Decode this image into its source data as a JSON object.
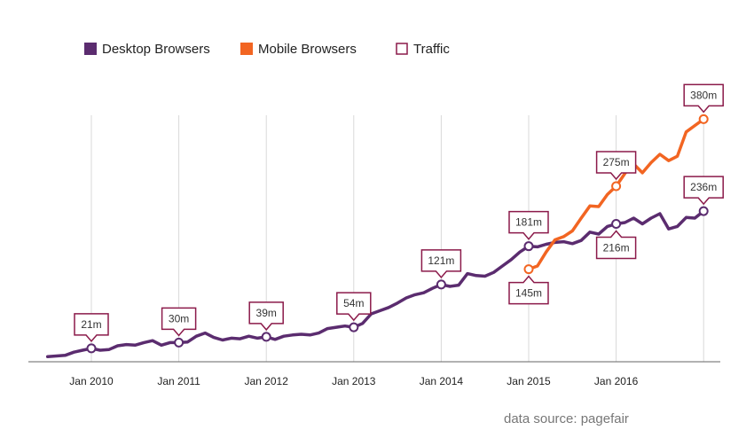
{
  "chart_data": {
    "type": "line",
    "title": "",
    "xlabel": "",
    "ylabel": "",
    "x_ticks": [
      "Jan 2010",
      "Jan 2011",
      "Jan 2012",
      "Jan 2013",
      "Jan 2014",
      "Jan 2015",
      "Jan 2016"
    ],
    "ylim": [
      0,
      410
    ],
    "grid": "vertical",
    "legend_position": "top-left",
    "legend": [
      {
        "label": "Desktop Browsers",
        "marker": "filled-square",
        "color": "#5b2c6f"
      },
      {
        "label": "Mobile Browsers",
        "marker": "filled-square",
        "color": "#f26522"
      },
      {
        "label": "Traffic",
        "marker": "hollow-square",
        "color": "#8b1a4a"
      }
    ],
    "series": [
      {
        "name": "Desktop Browsers",
        "color": "#5b2c6f",
        "points": [
          [
            2009.5,
            8
          ],
          [
            2009.6,
            9
          ],
          [
            2009.7,
            10
          ],
          [
            2009.8,
            15
          ],
          [
            2009.9,
            18
          ],
          [
            2010.0,
            21
          ],
          [
            2010.1,
            18
          ],
          [
            2010.2,
            19
          ],
          [
            2010.3,
            25
          ],
          [
            2010.4,
            27
          ],
          [
            2010.5,
            26
          ],
          [
            2010.6,
            30
          ],
          [
            2010.7,
            33
          ],
          [
            2010.8,
            26
          ],
          [
            2010.9,
            30
          ],
          [
            2011.0,
            30
          ],
          [
            2011.1,
            31
          ],
          [
            2011.2,
            40
          ],
          [
            2011.3,
            45
          ],
          [
            2011.4,
            38
          ],
          [
            2011.5,
            34
          ],
          [
            2011.6,
            37
          ],
          [
            2011.7,
            36
          ],
          [
            2011.8,
            40
          ],
          [
            2011.9,
            37
          ],
          [
            2012.0,
            39
          ],
          [
            2012.1,
            35
          ],
          [
            2012.2,
            40
          ],
          [
            2012.3,
            42
          ],
          [
            2012.4,
            43
          ],
          [
            2012.5,
            42
          ],
          [
            2012.6,
            45
          ],
          [
            2012.7,
            52
          ],
          [
            2012.8,
            54
          ],
          [
            2012.9,
            56
          ],
          [
            2013.0,
            54
          ],
          [
            2013.1,
            60
          ],
          [
            2013.2,
            75
          ],
          [
            2013.3,
            80
          ],
          [
            2013.4,
            85
          ],
          [
            2013.5,
            92
          ],
          [
            2013.6,
            100
          ],
          [
            2013.7,
            105
          ],
          [
            2013.8,
            108
          ],
          [
            2013.9,
            115
          ],
          [
            2014.0,
            121
          ],
          [
            2014.1,
            118
          ],
          [
            2014.2,
            120
          ],
          [
            2014.3,
            138
          ],
          [
            2014.4,
            135
          ],
          [
            2014.5,
            134
          ],
          [
            2014.6,
            140
          ],
          [
            2014.7,
            150
          ],
          [
            2014.8,
            160
          ],
          [
            2014.9,
            172
          ],
          [
            2015.0,
            181
          ],
          [
            2015.1,
            180
          ],
          [
            2015.2,
            184
          ],
          [
            2015.3,
            187
          ],
          [
            2015.4,
            188
          ],
          [
            2015.5,
            185
          ],
          [
            2015.6,
            190
          ],
          [
            2015.7,
            203
          ],
          [
            2015.8,
            200
          ],
          [
            2015.9,
            212
          ],
          [
            2016.0,
            216
          ],
          [
            2016.1,
            218
          ],
          [
            2016.2,
            225
          ],
          [
            2016.3,
            216
          ],
          [
            2016.4,
            225
          ],
          [
            2016.5,
            232
          ],
          [
            2016.6,
            208
          ],
          [
            2016.7,
            212
          ],
          [
            2016.8,
            226
          ],
          [
            2016.9,
            225
          ],
          [
            2017.0,
            236
          ]
        ]
      },
      {
        "name": "Mobile Browsers",
        "color": "#f26522",
        "points": [
          [
            2015.0,
            145
          ],
          [
            2015.1,
            150
          ],
          [
            2015.2,
            172
          ],
          [
            2015.3,
            191
          ],
          [
            2015.4,
            196
          ],
          [
            2015.5,
            205
          ],
          [
            2015.6,
            225
          ],
          [
            2015.7,
            244
          ],
          [
            2015.8,
            243
          ],
          [
            2015.9,
            262
          ],
          [
            2016.0,
            275
          ],
          [
            2016.1,
            295
          ],
          [
            2016.2,
            310
          ],
          [
            2016.3,
            296
          ],
          [
            2016.4,
            312
          ],
          [
            2016.5,
            325
          ],
          [
            2016.6,
            315
          ],
          [
            2016.7,
            322
          ],
          [
            2016.8,
            360
          ],
          [
            2016.9,
            370
          ],
          [
            2017.0,
            380
          ]
        ]
      }
    ],
    "callouts": [
      {
        "series": "Desktop Browsers",
        "x": 2010.0,
        "label": "21m",
        "placement": "above"
      },
      {
        "series": "Desktop Browsers",
        "x": 2011.0,
        "label": "30m",
        "placement": "above"
      },
      {
        "series": "Desktop Browsers",
        "x": 2012.0,
        "label": "39m",
        "placement": "above"
      },
      {
        "series": "Desktop Browsers",
        "x": 2013.0,
        "label": "54m",
        "placement": "above"
      },
      {
        "series": "Desktop Browsers",
        "x": 2014.0,
        "label": "121m",
        "placement": "above"
      },
      {
        "series": "Desktop Browsers",
        "x": 2015.0,
        "label": "181m",
        "placement": "above"
      },
      {
        "series": "Mobile Browsers",
        "x": 2015.0,
        "label": "145m",
        "placement": "below"
      },
      {
        "series": "Mobile Browsers",
        "x": 2016.0,
        "label": "275m",
        "placement": "above"
      },
      {
        "series": "Desktop Browsers",
        "x": 2016.0,
        "label": "216m",
        "placement": "below"
      },
      {
        "series": "Desktop Browsers",
        "x": 2017.0,
        "label": "236m",
        "placement": "above"
      },
      {
        "series": "Mobile Browsers",
        "x": 2017.0,
        "label": "380m",
        "placement": "above"
      }
    ],
    "source": "data source: pagefair",
    "colors": {
      "callout_border": "#8b1a4a",
      "grid": "#d9d9d9",
      "axis": "#666666"
    }
  }
}
